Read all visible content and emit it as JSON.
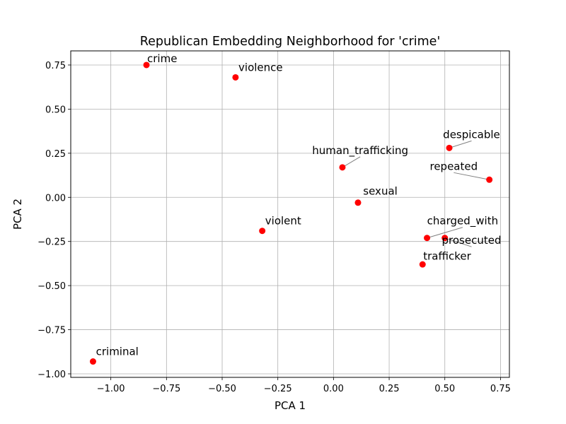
{
  "chart_data": {
    "type": "scatter",
    "title": "Republican Embedding Neighborhood for 'crime'",
    "xlabel": "PCA 1",
    "ylabel": "PCA 2",
    "xlim": [
      -1.18,
      0.79
    ],
    "ylim": [
      -1.02,
      0.83
    ],
    "grid": true,
    "marker_color": "#ff0000",
    "xticks": [
      -1.0,
      -0.75,
      -0.5,
      -0.25,
      0.0,
      0.25,
      0.5,
      0.75
    ],
    "xtick_labels": [
      "−1.00",
      "−0.75",
      "−0.50",
      "−0.25",
      "0.00",
      "0.25",
      "0.50",
      "0.75"
    ],
    "yticks": [
      -1.0,
      -0.75,
      -0.5,
      -0.25,
      0.0,
      0.25,
      0.5,
      0.75
    ],
    "ytick_labels": [
      "−1.00",
      "−0.75",
      "−0.50",
      "−0.25",
      "0.00",
      "0.25",
      "0.50",
      "0.75"
    ],
    "points": [
      {
        "label": "crime",
        "x": -0.84,
        "y": 0.75,
        "lx": -0.84,
        "ly": 0.75
      },
      {
        "label": "violence",
        "x": -0.44,
        "y": 0.68,
        "lx": -0.43,
        "ly": 0.7
      },
      {
        "label": "despicable",
        "x": 0.52,
        "y": 0.28,
        "lx": 0.62,
        "ly": 0.32
      },
      {
        "label": "human_trafficking",
        "x": 0.04,
        "y": 0.17,
        "lx": 0.12,
        "ly": 0.23
      },
      {
        "label": "repeated",
        "x": 0.7,
        "y": 0.1,
        "lx": 0.54,
        "ly": 0.14
      },
      {
        "label": "sexual",
        "x": 0.11,
        "y": -0.03,
        "lx": 0.13,
        "ly": 0.0
      },
      {
        "label": "violent",
        "x": -0.32,
        "y": -0.19,
        "lx": -0.31,
        "ly": -0.17
      },
      {
        "label": "charged_with",
        "x": 0.42,
        "y": -0.23,
        "lx": 0.58,
        "ly": -0.17
      },
      {
        "label": "prosecuted",
        "x": 0.5,
        "y": -0.23,
        "lx": 0.62,
        "ly": -0.28
      },
      {
        "label": "trafficker",
        "x": 0.4,
        "y": -0.38,
        "lx": 0.4,
        "ly": -0.37
      },
      {
        "label": "criminal",
        "x": -1.08,
        "y": -0.93,
        "lx": -1.07,
        "ly": -0.91
      }
    ]
  }
}
